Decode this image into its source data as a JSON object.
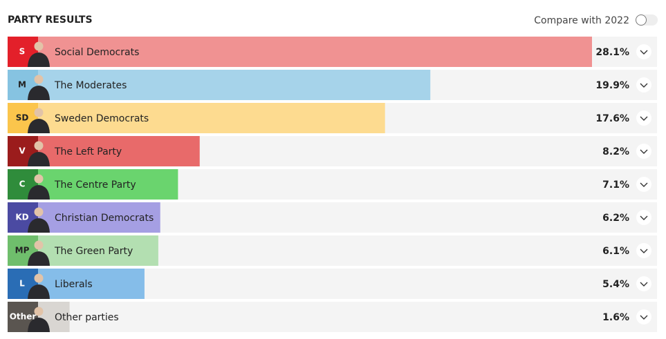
{
  "chart_data": {
    "type": "bar",
    "title": "PARTY RESULTS",
    "compare_label": "Compare with 2022",
    "categories": [
      "Social Democrats",
      "The Moderates",
      "Sweden Democrats",
      "The Left Party",
      "The Centre Party",
      "Christian Democrats",
      "The Green Party",
      "Liberals",
      "Other parties"
    ],
    "abbreviations": [
      "S",
      "M",
      "SD",
      "V",
      "C",
      "KD",
      "MP",
      "L",
      "Other"
    ],
    "values": [
      28.1,
      19.9,
      17.6,
      8.2,
      7.1,
      6.2,
      6.1,
      5.4,
      1.6
    ],
    "value_labels": [
      "28.1%",
      "19.9%",
      "17.6%",
      "8.2%",
      "7.1%",
      "6.2%",
      "6.1%",
      "5.4%",
      "1.6%"
    ],
    "colors": [
      "#f09292",
      "#a6d3ea",
      "#fddb90",
      "#e86a6a",
      "#6ad46e",
      "#a59fe3",
      "#b3dfb1",
      "#85bde9",
      "#d9d6d2"
    ],
    "badge_colors": [
      "#e3202a",
      "#86c3e1",
      "#fbc54c",
      "#9b1c1c",
      "#2f8c3b",
      "#4b4aa2",
      "#6fbe6c",
      "#2a6db5",
      "#5a5550"
    ]
  }
}
